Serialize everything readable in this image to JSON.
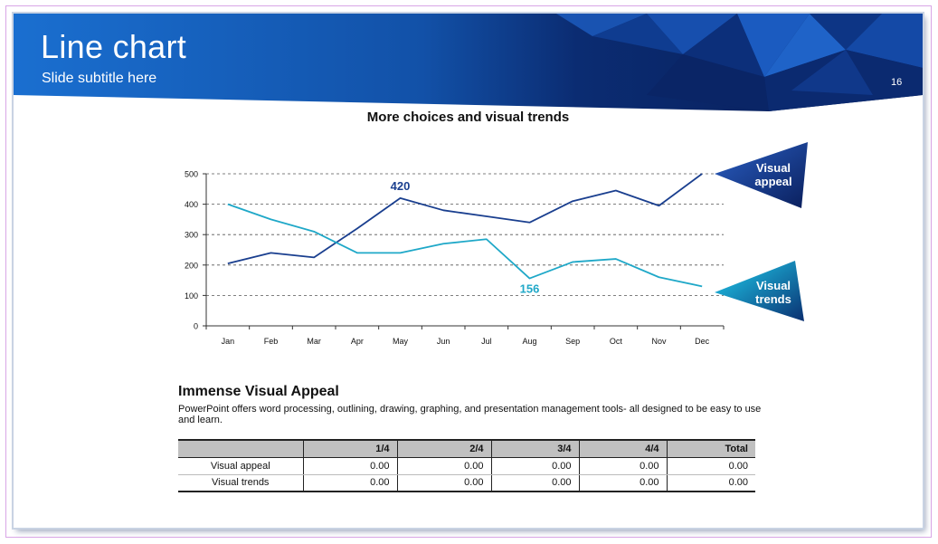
{
  "slide": {
    "title": "Line chart",
    "subtitle": "Slide subtitle here",
    "page_number": "16"
  },
  "colors": {
    "header_blue": "#1565c0",
    "header_dark": "#0a1f5c",
    "series_appeal": "#1a3f8f",
    "series_trends": "#1fa8c8"
  },
  "chart_data": {
    "type": "line",
    "title": "More choices and visual trends",
    "categories": [
      "Jan",
      "Feb",
      "Mar",
      "Apr",
      "May",
      "Jun",
      "Jul",
      "Aug",
      "Sep",
      "Oct",
      "Nov",
      "Dec"
    ],
    "series": [
      {
        "name": "Visual appeal",
        "values": [
          205,
          240,
          225,
          320,
          420,
          380,
          360,
          340,
          410,
          445,
          395,
          500
        ]
      },
      {
        "name": "Visual trends",
        "values": [
          400,
          350,
          310,
          240,
          240,
          270,
          285,
          156,
          210,
          220,
          160,
          130
        ]
      }
    ],
    "annotations": [
      {
        "series": 0,
        "index": 4,
        "text": "420"
      },
      {
        "series": 1,
        "index": 7,
        "text": "156"
      }
    ],
    "yticks": [
      0,
      100,
      200,
      300,
      400,
      500
    ],
    "ylim": [
      0,
      500
    ],
    "xlabel": "",
    "ylabel": "",
    "grid": true,
    "legend": "callouts on right"
  },
  "callouts": {
    "appeal": "Visual appeal",
    "trends": "Visual trends"
  },
  "section": {
    "heading": "Immense Visual Appeal",
    "body": "PowerPoint offers word processing, outlining, drawing, graphing, and presentation management tools- all designed to be easy to use and learn."
  },
  "table": {
    "headers": [
      "",
      "1/4",
      "2/4",
      "3/4",
      "4/4",
      "Total"
    ],
    "rows": [
      [
        "Visual appeal",
        "0.00",
        "0.00",
        "0.00",
        "0.00",
        "0.00"
      ],
      [
        "Visual trends",
        "0.00",
        "0.00",
        "0.00",
        "0.00",
        "0.00"
      ]
    ]
  }
}
